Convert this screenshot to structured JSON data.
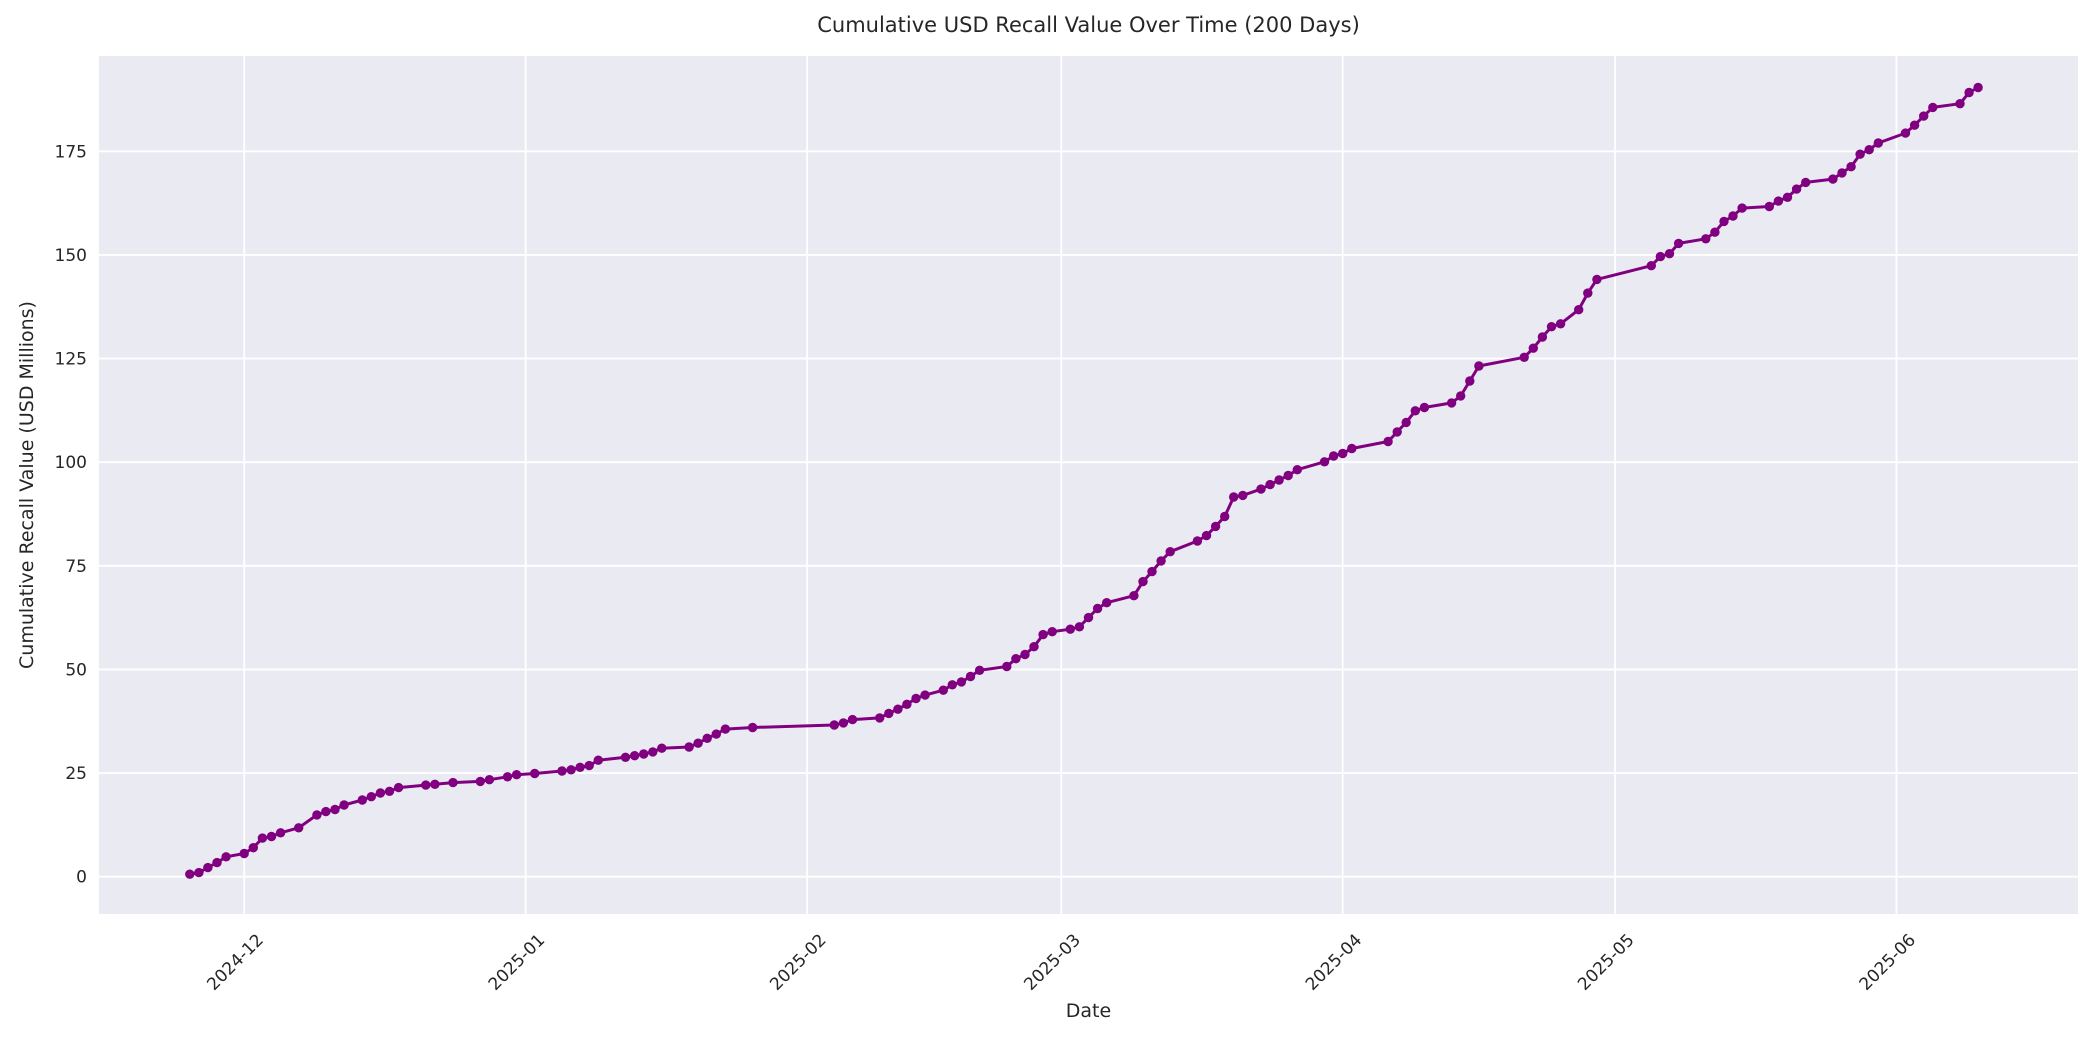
{
  "chart_data": {
    "type": "line",
    "title": "Cumulative USD Recall Value Over Time (200 Days)",
    "xlabel": "Date",
    "ylabel": "Cumulative Recall Value (USD Millions)",
    "legend": "none",
    "grid": true,
    "plot_bg_color": "#eaeaf2",
    "grid_color": "#ffffff",
    "line_color": "#800080",
    "text_color": "#262626",
    "x_tick_labels": [
      "2024-12",
      "2025-01",
      "2025-02",
      "2025-03",
      "2025-04",
      "2025-05",
      "2025-06"
    ],
    "x_tick_dates": [
      "2024-12-01",
      "2025-01-01",
      "2025-02-01",
      "2025-03-01",
      "2025-04-01",
      "2025-05-01",
      "2025-06-01"
    ],
    "y_ticks": [
      0,
      25,
      50,
      75,
      100,
      125,
      150,
      175
    ],
    "x_range": [
      "2024-11-15",
      "2025-06-21"
    ],
    "y_range": [
      -9,
      198
    ],
    "series": [
      {
        "name": "Cumulative USD Recall Value",
        "points": [
          [
            "2024-11-25",
            0.6
          ],
          [
            "2024-11-26",
            1.0
          ],
          [
            "2024-11-27",
            2.2
          ],
          [
            "2024-11-28",
            3.4
          ],
          [
            "2024-11-29",
            4.8
          ],
          [
            "2024-12-01",
            5.6
          ],
          [
            "2024-12-02",
            7.0
          ],
          [
            "2024-12-03",
            9.3
          ],
          [
            "2024-12-04",
            9.7
          ],
          [
            "2024-12-05",
            10.6
          ],
          [
            "2024-12-07",
            11.8
          ],
          [
            "2024-12-09",
            14.9
          ],
          [
            "2024-12-10",
            15.7
          ],
          [
            "2024-12-11",
            16.2
          ],
          [
            "2024-12-12",
            17.3
          ],
          [
            "2024-12-14",
            18.5
          ],
          [
            "2024-12-15",
            19.3
          ],
          [
            "2024-12-16",
            20.2
          ],
          [
            "2024-12-17",
            20.6
          ],
          [
            "2024-12-18",
            21.5
          ],
          [
            "2024-12-21",
            22.1
          ],
          [
            "2024-12-22",
            22.3
          ],
          [
            "2024-12-24",
            22.7
          ],
          [
            "2024-12-27",
            23.0
          ],
          [
            "2024-12-28",
            23.4
          ],
          [
            "2024-12-30",
            24.1
          ],
          [
            "2024-12-31",
            24.6
          ],
          [
            "2025-01-02",
            24.9
          ],
          [
            "2025-01-05",
            25.5
          ],
          [
            "2025-01-06",
            25.8
          ],
          [
            "2025-01-07",
            26.4
          ],
          [
            "2025-01-08",
            26.8
          ],
          [
            "2025-01-09",
            28.1
          ],
          [
            "2025-01-12",
            28.8
          ],
          [
            "2025-01-13",
            29.2
          ],
          [
            "2025-01-14",
            29.6
          ],
          [
            "2025-01-15",
            30.1
          ],
          [
            "2025-01-16",
            31.0
          ],
          [
            "2025-01-19",
            31.3
          ],
          [
            "2025-01-20",
            32.2
          ],
          [
            "2025-01-21",
            33.4
          ],
          [
            "2025-01-22",
            34.4
          ],
          [
            "2025-01-23",
            35.6
          ],
          [
            "2025-01-26",
            36.0
          ],
          [
            "2025-02-04",
            36.6
          ],
          [
            "2025-02-05",
            37.1
          ],
          [
            "2025-02-06",
            37.9
          ],
          [
            "2025-02-09",
            38.3
          ],
          [
            "2025-02-10",
            39.4
          ],
          [
            "2025-02-11",
            40.4
          ],
          [
            "2025-02-12",
            41.6
          ],
          [
            "2025-02-13",
            43.0
          ],
          [
            "2025-02-14",
            43.8
          ],
          [
            "2025-02-16",
            45.0
          ],
          [
            "2025-02-17",
            46.3
          ],
          [
            "2025-02-18",
            47.0
          ],
          [
            "2025-02-19",
            48.3
          ],
          [
            "2025-02-20",
            49.8
          ],
          [
            "2025-02-23",
            50.7
          ],
          [
            "2025-02-24",
            52.6
          ],
          [
            "2025-02-25",
            53.6
          ],
          [
            "2025-02-26",
            55.5
          ],
          [
            "2025-02-27",
            58.4
          ],
          [
            "2025-02-28",
            59.1
          ],
          [
            "2025-03-02",
            59.7
          ],
          [
            "2025-03-03",
            60.3
          ],
          [
            "2025-03-04",
            62.5
          ],
          [
            "2025-03-05",
            64.7
          ],
          [
            "2025-03-06",
            66.1
          ],
          [
            "2025-03-09",
            67.8
          ],
          [
            "2025-03-10",
            71.2
          ],
          [
            "2025-03-11",
            73.6
          ],
          [
            "2025-03-12",
            76.2
          ],
          [
            "2025-03-13",
            78.4
          ],
          [
            "2025-03-16",
            81.0
          ],
          [
            "2025-03-17",
            82.3
          ],
          [
            "2025-03-18",
            84.5
          ],
          [
            "2025-03-19",
            86.9
          ],
          [
            "2025-03-20",
            91.6
          ],
          [
            "2025-03-21",
            92.0
          ],
          [
            "2025-03-23",
            93.5
          ],
          [
            "2025-03-24",
            94.6
          ],
          [
            "2025-03-25",
            95.7
          ],
          [
            "2025-03-26",
            96.8
          ],
          [
            "2025-03-27",
            98.2
          ],
          [
            "2025-03-30",
            100.1
          ],
          [
            "2025-03-31",
            101.5
          ],
          [
            "2025-04-01",
            102.1
          ],
          [
            "2025-04-02",
            103.3
          ],
          [
            "2025-04-06",
            105.0
          ],
          [
            "2025-04-07",
            107.3
          ],
          [
            "2025-04-08",
            109.6
          ],
          [
            "2025-04-09",
            112.4
          ],
          [
            "2025-04-10",
            113.2
          ],
          [
            "2025-04-13",
            114.3
          ],
          [
            "2025-04-14",
            116.0
          ],
          [
            "2025-04-15",
            119.6
          ],
          [
            "2025-04-16",
            123.2
          ],
          [
            "2025-04-21",
            125.3
          ],
          [
            "2025-04-22",
            127.5
          ],
          [
            "2025-04-23",
            130.2
          ],
          [
            "2025-04-24",
            132.7
          ],
          [
            "2025-04-25",
            133.4
          ],
          [
            "2025-04-27",
            136.8
          ],
          [
            "2025-04-28",
            140.8
          ],
          [
            "2025-04-29",
            144.1
          ],
          [
            "2025-05-05",
            147.4
          ],
          [
            "2025-05-06",
            149.6
          ],
          [
            "2025-05-07",
            150.3
          ],
          [
            "2025-05-08",
            152.8
          ],
          [
            "2025-05-11",
            153.9
          ],
          [
            "2025-05-12",
            155.5
          ],
          [
            "2025-05-13",
            158.1
          ],
          [
            "2025-05-14",
            159.4
          ],
          [
            "2025-05-15",
            161.3
          ],
          [
            "2025-05-18",
            161.7
          ],
          [
            "2025-05-19",
            163.0
          ],
          [
            "2025-05-20",
            163.9
          ],
          [
            "2025-05-21",
            165.9
          ],
          [
            "2025-05-22",
            167.5
          ],
          [
            "2025-05-25",
            168.3
          ],
          [
            "2025-05-26",
            169.8
          ],
          [
            "2025-05-27",
            171.3
          ],
          [
            "2025-05-28",
            174.3
          ],
          [
            "2025-05-29",
            175.4
          ],
          [
            "2025-05-30",
            177.0
          ],
          [
            "2025-06-02",
            179.4
          ],
          [
            "2025-06-03",
            181.3
          ],
          [
            "2025-06-04",
            183.5
          ],
          [
            "2025-06-05",
            185.6
          ],
          [
            "2025-06-08",
            186.5
          ],
          [
            "2025-06-09",
            189.2
          ],
          [
            "2025-06-10",
            190.4
          ]
        ]
      }
    ]
  }
}
